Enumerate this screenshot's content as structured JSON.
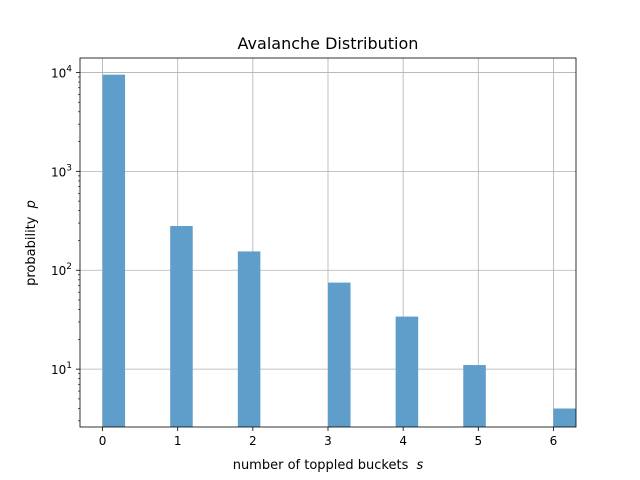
{
  "chart_data": {
    "type": "bar",
    "title": "Avalanche Distribution",
    "xlabel": "number of toppled buckets",
    "xlabel_var": "s",
    "ylabel": "probability",
    "ylabel_var": "p",
    "yscale": "log",
    "ylim": [
      2.6,
      14000
    ],
    "xlim": [
      -0.3,
      6.3
    ],
    "grid": true,
    "bar_color": "#5f9ecb",
    "grid_color": "#b0b0b0",
    "x_ticks": [
      0,
      1,
      2,
      3,
      4,
      5,
      6
    ],
    "x_tick_labels": [
      "0",
      "1",
      "2",
      "3",
      "4",
      "5",
      "6"
    ],
    "y_ticks": [
      10,
      100,
      1000,
      10000
    ],
    "y_tick_labels": [
      {
        "base": "10",
        "exp": "1"
      },
      {
        "base": "10",
        "exp": "2"
      },
      {
        "base": "10",
        "exp": "3"
      },
      {
        "base": "10",
        "exp": "4"
      }
    ],
    "bar_width": 0.3,
    "bars": [
      {
        "x": 0.15,
        "value": 9500
      },
      {
        "x": 1.05,
        "value": 280
      },
      {
        "x": 1.95,
        "value": 155
      },
      {
        "x": 3.15,
        "value": 75
      },
      {
        "x": 4.05,
        "value": 34
      },
      {
        "x": 4.95,
        "value": 11
      },
      {
        "x": 6.15,
        "value": 4
      }
    ]
  }
}
